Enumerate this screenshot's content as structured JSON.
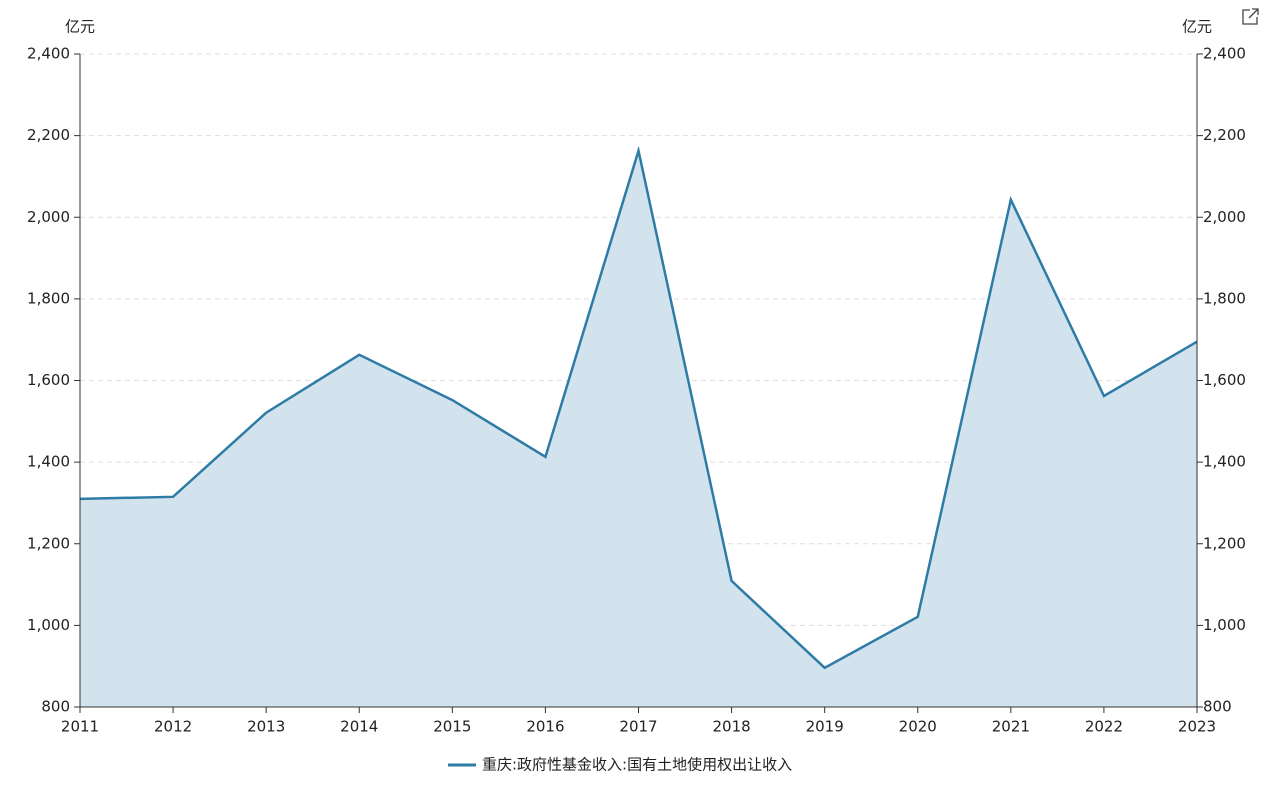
{
  "chart_data": {
    "type": "area",
    "y_unit": "亿元",
    "y2_unit": "亿元",
    "categories": [
      "2011",
      "2012",
      "2013",
      "2014",
      "2015",
      "2016",
      "2017",
      "2018",
      "2019",
      "2020",
      "2021",
      "2022",
      "2023"
    ],
    "series": [
      {
        "name": "重庆:政府性基金收入:国有土地使用权出让收入",
        "color": "#2e7ca6",
        "fill": "#d3e3ed",
        "values": [
          1310,
          1315,
          1521,
          1663,
          1552,
          1413,
          2163,
          1109,
          896,
          1021,
          2043,
          1562,
          1695
        ]
      }
    ],
    "ylim": [
      800,
      2400
    ],
    "yticks": [
      800,
      {
        "value": 1000,
        "label": "1,000"
      },
      {
        "value": 1200,
        "label": "1,200"
      },
      {
        "value": 1400,
        "label": "1,400"
      },
      {
        "value": 1600,
        "label": "1,600"
      },
      {
        "value": 1800,
        "label": "1,800"
      },
      {
        "value": 2000,
        "label": "2,000"
      },
      {
        "value": 2200,
        "label": "2,200"
      },
      {
        "value": 2400,
        "label": "2,400"
      }
    ],
    "y2lim": [
      800,
      2400
    ],
    "y2ticks": [
      800,
      {
        "value": 1000,
        "label": "1,000"
      },
      {
        "value": 1200,
        "label": "1,200"
      },
      {
        "value": 1400,
        "label": "1,400"
      },
      {
        "value": 1600,
        "label": "1,600"
      },
      {
        "value": 1800,
        "label": "1,800"
      },
      {
        "value": 2000,
        "label": "2,000"
      },
      {
        "value": 2200,
        "label": "2,200"
      },
      {
        "value": 2400,
        "label": "2,400"
      }
    ],
    "grid": true
  }
}
